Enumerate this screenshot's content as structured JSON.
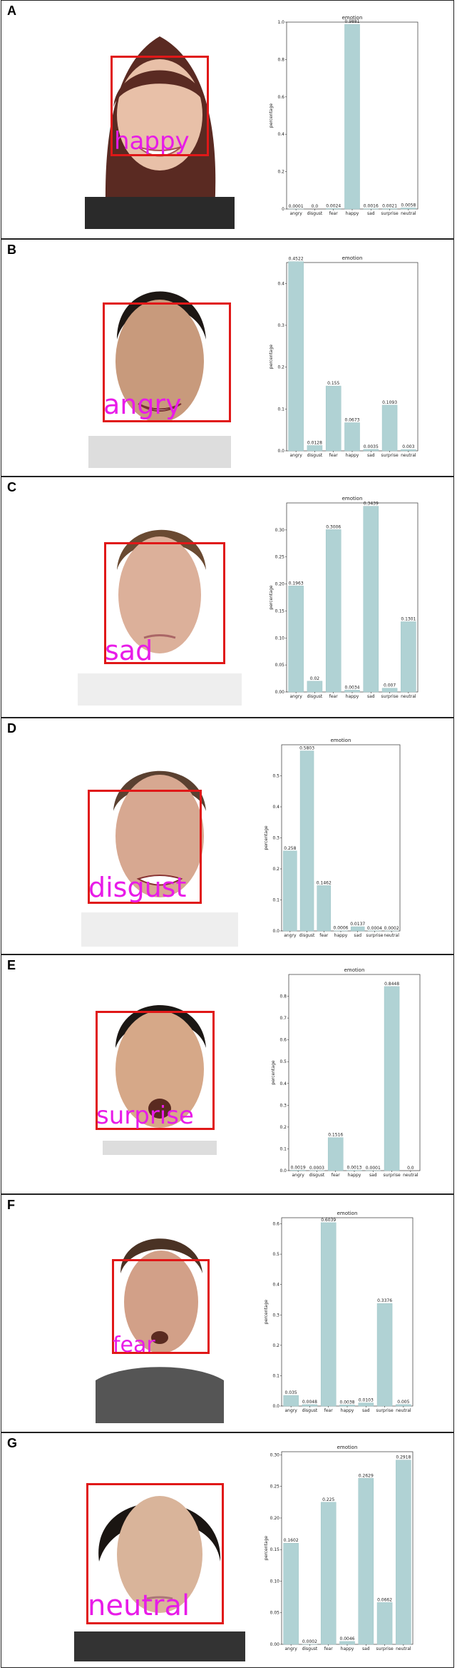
{
  "panels": [
    {
      "letter": "A",
      "label": "happy"
    },
    {
      "letter": "B",
      "label": "angry"
    },
    {
      "letter": "C",
      "label": "sad"
    },
    {
      "letter": "D",
      "label": "disgust"
    },
    {
      "letter": "E",
      "label": "surprise"
    },
    {
      "letter": "F",
      "label": "fear"
    },
    {
      "letter": "G",
      "label": "neutral"
    }
  ],
  "colors": {
    "bar": "#b0d2d4",
    "face_box": "#e01818",
    "emotion_label": "#e81be8",
    "panel_border": "#222222"
  },
  "chart_data": [
    {
      "type": "bar",
      "title": "emotion",
      "ylabel": "percentage",
      "categories": [
        "angry",
        "disgust",
        "fear",
        "happy",
        "sad",
        "surprise",
        "neutral"
      ],
      "values": [
        0.0001,
        0.0,
        0.0024,
        0.9881,
        0.0016,
        0.0021,
        0.0058
      ],
      "value_labels": [
        "0.0001",
        "0.0",
        "0.0024",
        "0.9881",
        "0.0016",
        "0.0021",
        "0.0058"
      ],
      "ylim": [
        0,
        1.0
      ],
      "yticks": [
        0,
        0.2,
        0.4,
        0.6,
        0.8,
        1.0
      ],
      "ytick_labels": [
        "0",
        "0.2",
        "0.4",
        "0.6",
        "0.8",
        "1.0"
      ]
    },
    {
      "type": "bar",
      "title": "emotion",
      "ylabel": "percentage",
      "categories": [
        "angry",
        "disgust",
        "fear",
        "happy",
        "sad",
        "surprise",
        "neutral"
      ],
      "values": [
        0.4522,
        0.0128,
        0.155,
        0.0673,
        0.0035,
        0.1093,
        0.003
      ],
      "value_labels": [
        "0.4522",
        "0.0128",
        "0.155",
        "0.0673",
        "0.0035",
        "0.1093",
        "0.003"
      ],
      "ylim": [
        0,
        0.45
      ],
      "yticks": [
        0,
        0.1,
        0.2,
        0.3,
        0.4
      ],
      "ytick_labels": [
        "0.0",
        "0.1",
        "0.2",
        "0.3",
        "0.4"
      ]
    },
    {
      "type": "bar",
      "title": "emotion",
      "ylabel": "percentage",
      "categories": [
        "angry",
        "disgust",
        "fear",
        "happy",
        "sad",
        "surprise",
        "neutral"
      ],
      "values": [
        0.1963,
        0.02,
        0.3006,
        0.0034,
        0.3439,
        0.007,
        0.1301
      ],
      "value_labels": [
        "0.1963",
        "0.02",
        "0.3006",
        "0.0034",
        "0.3439",
        "0.007",
        "0.1301"
      ],
      "ylim": [
        0,
        0.35
      ],
      "yticks": [
        0,
        0.05,
        0.1,
        0.15,
        0.2,
        0.25,
        0.3
      ],
      "ytick_labels": [
        "0.00",
        "0.05",
        "0.10",
        "0.15",
        "0.20",
        "0.25",
        "0.30"
      ]
    },
    {
      "type": "bar",
      "title": "emotion",
      "ylabel": "percentage",
      "categories": [
        "angry",
        "disgust",
        "fear",
        "happy",
        "sad",
        "surprise",
        "neutral"
      ],
      "values": [
        0.258,
        0.5803,
        0.1462,
        0.0006,
        0.0137,
        0.0004,
        0.0002
      ],
      "value_labels": [
        "0.258",
        "0.5803",
        "0.1462",
        "0.0006",
        "0.0137",
        "0.0004",
        "0.0002"
      ],
      "ylim": [
        0,
        0.6
      ],
      "yticks": [
        0,
        0.1,
        0.2,
        0.3,
        0.4,
        0.5
      ],
      "ytick_labels": [
        "0.0",
        "0.1",
        "0.2",
        "0.3",
        "0.4",
        "0.5"
      ]
    },
    {
      "type": "bar",
      "title": "emotion",
      "ylabel": "percentage",
      "categories": [
        "angry",
        "disgust",
        "fear",
        "happy",
        "sad",
        "surprise",
        "neutral"
      ],
      "values": [
        0.0019,
        0.0003,
        0.1516,
        0.0013,
        0.0001,
        0.8448,
        0.0
      ],
      "value_labels": [
        "0.0019",
        "0.0003",
        "0.1516",
        "0.0013",
        "0.0001",
        "0.8448",
        "0.0"
      ],
      "ylim": [
        0,
        0.9
      ],
      "yticks": [
        0,
        0.1,
        0.2,
        0.3,
        0.4,
        0.5,
        0.6,
        0.7,
        0.8
      ],
      "ytick_labels": [
        "0.0",
        "0.1",
        "0.2",
        "0.3",
        "0.4",
        "0.5",
        "0.6",
        "0.7",
        "0.8"
      ]
    },
    {
      "type": "bar",
      "title": "emotion",
      "ylabel": "percentage",
      "categories": [
        "angry",
        "disgust",
        "fear",
        "happy",
        "sad",
        "surprise",
        "neutral"
      ],
      "values": [
        0.035,
        0.0048,
        0.6039,
        0.0038,
        0.0103,
        0.3376,
        0.005
      ],
      "value_labels": [
        "0.035",
        "0.0048",
        "0.6039",
        "0.0038",
        "0.0103",
        "0.3376",
        "0.005"
      ],
      "ylim": [
        0,
        0.62
      ],
      "yticks": [
        0,
        0.1,
        0.2,
        0.3,
        0.4,
        0.5,
        0.6
      ],
      "ytick_labels": [
        "0.0",
        "0.1",
        "0.2",
        "0.3",
        "0.4",
        "0.5",
        "0.6"
      ]
    },
    {
      "type": "bar",
      "title": "emotion",
      "ylabel": "percentage",
      "categories": [
        "angry",
        "disgust",
        "fear",
        "happy",
        "sad",
        "surprise",
        "neutral"
      ],
      "values": [
        0.1602,
        0.0002,
        0.225,
        0.0046,
        0.2629,
        0.0662,
        0.2918
      ],
      "value_labels": [
        "0.1602",
        "0.0002",
        "0.225",
        "0.0046",
        "0.2629",
        "0.0662",
        "0.2918"
      ],
      "ylim": [
        0,
        0.305
      ],
      "yticks": [
        0,
        0.05,
        0.1,
        0.15,
        0.2,
        0.25,
        0.3
      ],
      "ytick_labels": [
        "0.00",
        "0.05",
        "0.10",
        "0.15",
        "0.20",
        "0.25",
        "0.30"
      ]
    }
  ]
}
